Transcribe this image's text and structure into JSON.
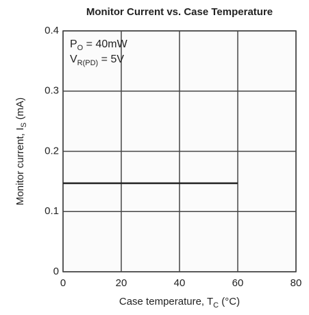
{
  "chart_data": {
    "type": "line",
    "title": "Monitor Current vs. Case Temperature",
    "x_label": {
      "main": "Case temperature,  T",
      "sub": "C",
      "after": "  (°C)"
    },
    "y_label": {
      "main": "Monitor current,  I",
      "sub": "S",
      "after": "  (mA)"
    },
    "annotations": [
      {
        "main": "P",
        "sub": "O",
        "after": " = 40mW"
      },
      {
        "main": "V",
        "sub": "R(PD)",
        "after": " = 5V"
      }
    ],
    "x": [
      0,
      60
    ],
    "series": [
      {
        "color": "#222222",
        "values": [
          0.147,
          0.147
        ]
      }
    ],
    "xlim": [
      0,
      80
    ],
    "xticks": [
      0,
      20,
      40,
      60,
      80
    ],
    "ylim": [
      0,
      0.4
    ],
    "yticks": [
      0,
      0.1,
      0.2,
      0.3,
      0.4
    ],
    "grid": true
  }
}
